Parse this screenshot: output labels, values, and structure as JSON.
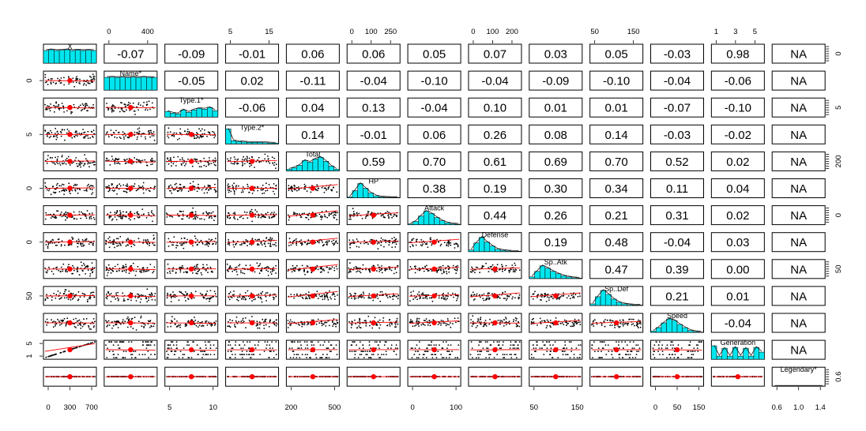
{
  "chart_data": {
    "type": "pairs-panel",
    "variables": [
      "X",
      "Name*",
      "Type.1*",
      "Type.2*",
      "Total",
      "HP",
      "Attack",
      "Defense",
      "Sp..Atk",
      "Sp..Def",
      "Speed",
      "Generation",
      "Legendary*"
    ],
    "correlations": [
      [
        null,
        "-0.07",
        "-0.09",
        "-0.01",
        "0.06",
        "0.06",
        "0.05",
        "0.07",
        "0.03",
        "0.05",
        "-0.03",
        "0.98",
        "NA"
      ],
      [
        null,
        null,
        "-0.05",
        "0.02",
        "-0.11",
        "-0.04",
        "-0.10",
        "-0.04",
        "-0.09",
        "-0.10",
        "-0.04",
        "-0.06",
        "NA"
      ],
      [
        null,
        null,
        null,
        "-0.06",
        "0.04",
        "0.13",
        "-0.04",
        "0.10",
        "0.01",
        "0.01",
        "-0.07",
        "-0.10",
        "NA"
      ],
      [
        null,
        null,
        null,
        null,
        "0.14",
        "-0.01",
        "0.06",
        "0.26",
        "0.08",
        "0.14",
        "-0.03",
        "-0.02",
        "NA"
      ],
      [
        null,
        null,
        null,
        null,
        null,
        "0.59",
        "0.70",
        "0.61",
        "0.69",
        "0.70",
        "0.52",
        "0.02",
        "NA"
      ],
      [
        null,
        null,
        null,
        null,
        null,
        null,
        "0.38",
        "0.19",
        "0.30",
        "0.34",
        "0.11",
        "0.04",
        "NA"
      ],
      [
        null,
        null,
        null,
        null,
        null,
        null,
        null,
        "0.44",
        "0.26",
        "0.21",
        "0.31",
        "0.02",
        "NA"
      ],
      [
        null,
        null,
        null,
        null,
        null,
        null,
        null,
        null,
        "0.19",
        "0.48",
        "-0.04",
        "0.03",
        "NA"
      ],
      [
        null,
        null,
        null,
        null,
        null,
        null,
        null,
        null,
        null,
        "0.47",
        "0.39",
        "0.00",
        "NA"
      ],
      [
        null,
        null,
        null,
        null,
        null,
        null,
        null,
        null,
        null,
        null,
        "0.21",
        "0.01",
        "NA"
      ],
      [
        null,
        null,
        null,
        null,
        null,
        null,
        null,
        null,
        null,
        null,
        null,
        "-0.04",
        "NA"
      ],
      [
        null,
        null,
        null,
        null,
        null,
        null,
        null,
        null,
        null,
        null,
        null,
        null,
        "NA"
      ]
    ],
    "top_axis": [
      {
        "col": 1,
        "ticks": [
          "0",
          "400"
        ]
      },
      {
        "col": 3,
        "ticks": [
          "5",
          "15"
        ]
      },
      {
        "col": 5,
        "ticks": [
          "0",
          "100",
          "250"
        ]
      },
      {
        "col": 7,
        "ticks": [
          "0",
          "100",
          "200"
        ]
      },
      {
        "col": 9,
        "ticks": [
          "50",
          "150"
        ]
      },
      {
        "col": 11,
        "ticks": [
          "1",
          "3",
          "5"
        ]
      }
    ],
    "bottom_axis": [
      {
        "col": 0,
        "ticks": [
          "0",
          "300",
          "700"
        ]
      },
      {
        "col": 2,
        "ticks": [
          "5",
          "10"
        ]
      },
      {
        "col": 4,
        "ticks": [
          "200",
          "500"
        ]
      },
      {
        "col": 6,
        "ticks": [
          "0",
          "100"
        ]
      },
      {
        "col": 8,
        "ticks": [
          "50",
          "150"
        ]
      },
      {
        "col": 10,
        "ticks": [
          "0",
          "50",
          "150"
        ]
      },
      {
        "col": 12,
        "ticks": [
          "0.6",
          "1.0",
          "1.4"
        ]
      }
    ],
    "left_axis": [
      {
        "row": 1,
        "ticks": [
          "0"
        ]
      },
      {
        "row": 3,
        "ticks": [
          "5"
        ]
      },
      {
        "row": 5,
        "ticks": [
          "0"
        ]
      },
      {
        "row": 7,
        "ticks": [
          "0"
        ]
      },
      {
        "row": 9,
        "ticks": [
          "50"
        ]
      },
      {
        "row": 11,
        "ticks": [
          "1",
          "5"
        ]
      }
    ],
    "right_axis": [
      {
        "row": 0,
        "ticks": [
          "0"
        ]
      },
      {
        "row": 2,
        "ticks": [
          "5"
        ]
      },
      {
        "row": 4,
        "ticks": [
          "200"
        ]
      },
      {
        "row": 6,
        "ticks": [
          "0"
        ]
      },
      {
        "row": 8,
        "ticks": [
          "50"
        ]
      },
      {
        "row": 12,
        "ticks": [
          "0.6"
        ]
      }
    ],
    "colors": {
      "histogram": "#00e5ee",
      "points": "#000000",
      "centroid": "#ff0000",
      "smooth": "#ff0000",
      "panel_border": "#000000"
    }
  }
}
